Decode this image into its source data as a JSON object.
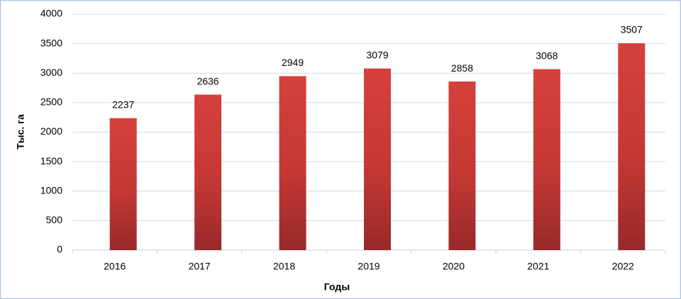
{
  "chart_data": {
    "type": "bar",
    "x_label": "Годы",
    "y_label": "Тыс. га",
    "categories": [
      "2016",
      "2017",
      "2018",
      "2019",
      "2020",
      "2021",
      "2022"
    ],
    "values": [
      2237,
      2636,
      2949,
      3079,
      2858,
      3068,
      3507
    ],
    "color": "#d23f3a",
    "ylim": [
      0,
      4000
    ],
    "yticks": [
      0,
      500,
      1000,
      1500,
      2000,
      2500,
      3000,
      3500,
      4000
    ],
    "grid": true
  }
}
